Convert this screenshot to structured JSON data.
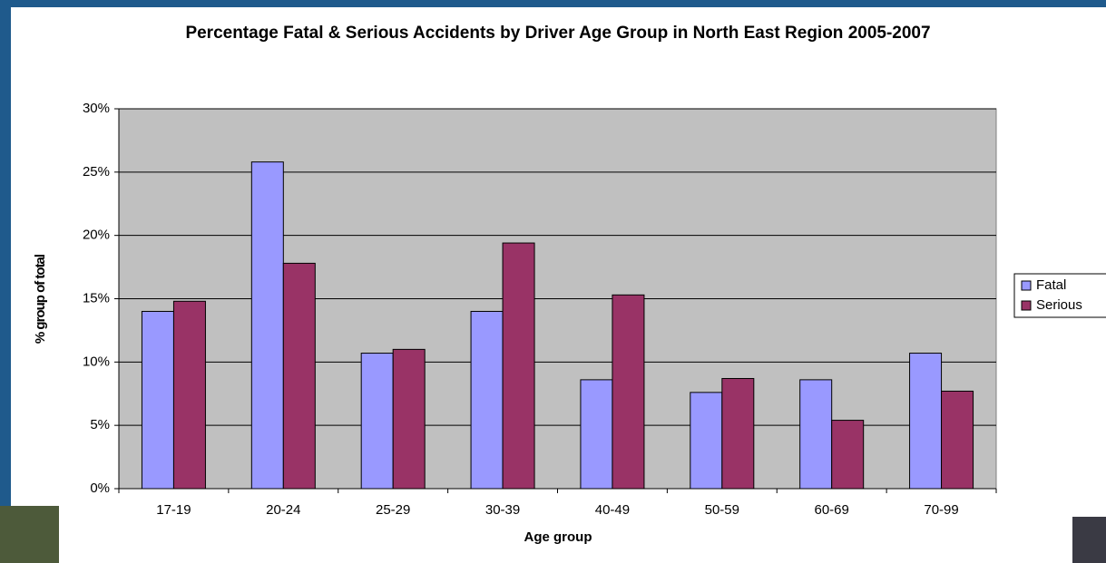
{
  "chart_data": {
    "type": "bar",
    "title": "Percentage Fatal & Serious Accidents by Driver Age Group in North East Region 2005-2007",
    "x_label": "Age group",
    "y_label": "% group of total",
    "categories": [
      "17-19",
      "20-24",
      "25-29",
      "30-39",
      "40-49",
      "50-59",
      "60-69",
      "70-99"
    ],
    "series": [
      {
        "name": "Fatal",
        "color": "#9999ff",
        "values": [
          14.0,
          25.8,
          10.7,
          14.0,
          8.6,
          7.6,
          8.6,
          10.7
        ]
      },
      {
        "name": "Serious",
        "color": "#993366",
        "values": [
          14.8,
          17.8,
          11.0,
          19.4,
          15.3,
          8.7,
          5.4,
          7.7
        ]
      }
    ],
    "ylim": [
      0,
      30
    ],
    "yticks": [
      {
        "value": 0,
        "label": "0%"
      },
      {
        "value": 5,
        "label": "5%"
      },
      {
        "value": 10,
        "label": "10%"
      },
      {
        "value": 15,
        "label": "15%"
      },
      {
        "value": 20,
        "label": "20%"
      },
      {
        "value": 25,
        "label": "25%"
      },
      {
        "value": 30,
        "label": "30%"
      }
    ],
    "grid": true,
    "legend": "right"
  }
}
